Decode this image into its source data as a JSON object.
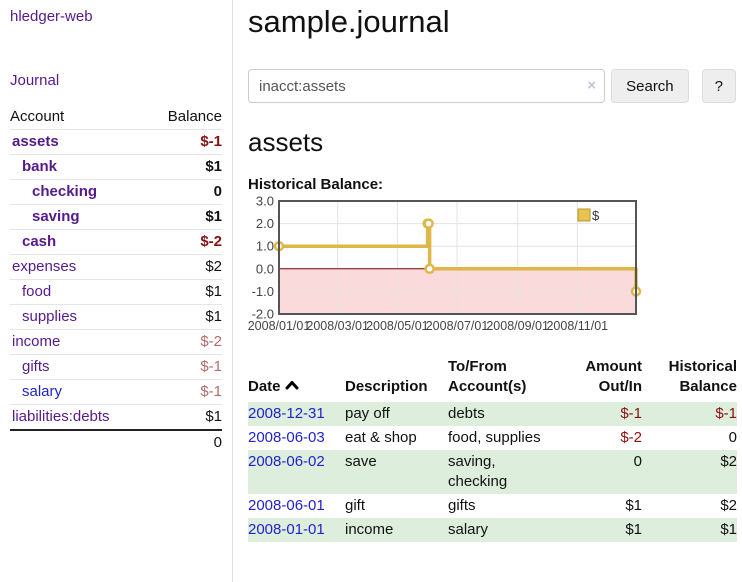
{
  "brand": "hledger-web",
  "nav": {
    "journal_label": "Journal"
  },
  "sidebar": {
    "columns": {
      "account": "Account",
      "balance": "Balance"
    },
    "rows": [
      {
        "name": "assets",
        "balance": "$-1",
        "level": 1,
        "bold": true,
        "balance_style": "neg-strong",
        "link_style": "purple"
      },
      {
        "name": "bank",
        "balance": "$1",
        "level": 2,
        "bold": true,
        "balance_style": "normal",
        "link_style": "purple"
      },
      {
        "name": "checking",
        "balance": "0",
        "level": 3,
        "bold": true,
        "balance_style": "normal",
        "link_style": "purple"
      },
      {
        "name": "saving",
        "balance": "$1",
        "level": 3,
        "bold": true,
        "balance_style": "normal",
        "link_style": "purple"
      },
      {
        "name": "cash",
        "balance": "$-2",
        "level": 2,
        "bold": true,
        "balance_style": "neg-strong",
        "link_style": "purple"
      },
      {
        "name": "expenses",
        "balance": "$2",
        "level": 1,
        "bold": false,
        "balance_style": "normal",
        "link_style": "purple"
      },
      {
        "name": "food",
        "balance": "$1",
        "level": 2,
        "bold": false,
        "balance_style": "normal",
        "link_style": "purple"
      },
      {
        "name": "supplies",
        "balance": "$1",
        "level": 2,
        "bold": false,
        "balance_style": "normal",
        "link_style": "purple"
      },
      {
        "name": "income",
        "balance": "$-2",
        "level": 1,
        "bold": false,
        "balance_style": "neg-muted",
        "link_style": "purple"
      },
      {
        "name": "gifts",
        "balance": "$-1",
        "level": 2,
        "bold": false,
        "balance_style": "neg-muted",
        "link_style": "purple"
      },
      {
        "name": "salary",
        "balance": "$-1",
        "level": 2,
        "bold": false,
        "balance_style": "neg-muted",
        "link_style": "blue"
      },
      {
        "name": "liabilities:debts",
        "balance": "$1",
        "level": 1,
        "bold": false,
        "balance_style": "normal",
        "link_style": "purple"
      }
    ],
    "total": "0"
  },
  "header": {
    "title": "sample.journal"
  },
  "search": {
    "value": "inacct:assets",
    "clear_icon": "×",
    "button_label": "Search",
    "help_label": "?"
  },
  "account_page": {
    "title": "assets",
    "chart_label": "Historical Balance:"
  },
  "chart_data": {
    "type": "line",
    "title": "Historical Balance",
    "series": [
      {
        "name": "$",
        "step": true,
        "points": [
          [
            "2008-01-01",
            1
          ],
          [
            "2008-06-01",
            2
          ],
          [
            "2008-06-02",
            2
          ],
          [
            "2008-06-03",
            0
          ],
          [
            "2008-12-31",
            -1
          ]
        ]
      }
    ],
    "ylim": [
      -2,
      3
    ],
    "yticks": [
      "3.0",
      "2.0",
      "1.0",
      "0.0",
      "-1.0",
      "-2.0"
    ],
    "xticks": [
      "2008/01/01",
      "2008/03/01",
      "2008/05/01",
      "2008/07/01",
      "2008/09/01",
      "2008/11/01"
    ],
    "legend": {
      "label": "$",
      "position": "top-right"
    },
    "grid": true,
    "colors": {
      "line": "#dfb748",
      "marker_fill": "#ffffff",
      "negative_fill": "#fadada",
      "zero_line": "#800000",
      "border": "#555555",
      "gridline": "#e3e3e3",
      "legend_fill": "#e8c352",
      "legend_border": "#b8952e",
      "tick_text": "#444444"
    }
  },
  "register": {
    "headers": [
      "Date",
      "Description",
      "To/From Account(s)",
      "Amount Out/In",
      "Historical Balance"
    ],
    "sorted_column": "Date",
    "sort_direction": "ascending",
    "rows": [
      {
        "date": "2008-12-31",
        "description": "pay off",
        "accounts": "debts",
        "amount": "$-1",
        "amount_neg": true,
        "balance": "$-1",
        "balance_neg": true
      },
      {
        "date": "2008-06-03",
        "description": "eat & shop",
        "accounts": "food, supplies",
        "amount": "$-2",
        "amount_neg": true,
        "balance": "0",
        "balance_neg": false
      },
      {
        "date": "2008-06-02",
        "description": "save",
        "accounts": "saving, checking",
        "amount": "0",
        "amount_neg": false,
        "balance": "$2",
        "balance_neg": false
      },
      {
        "date": "2008-06-01",
        "description": "gift",
        "accounts": "gifts",
        "amount": "$1",
        "amount_neg": false,
        "balance": "$2",
        "balance_neg": false
      },
      {
        "date": "2008-01-01",
        "description": "income",
        "accounts": "salary",
        "amount": "$1",
        "amount_neg": false,
        "balance": "$1",
        "balance_neg": false
      }
    ]
  }
}
